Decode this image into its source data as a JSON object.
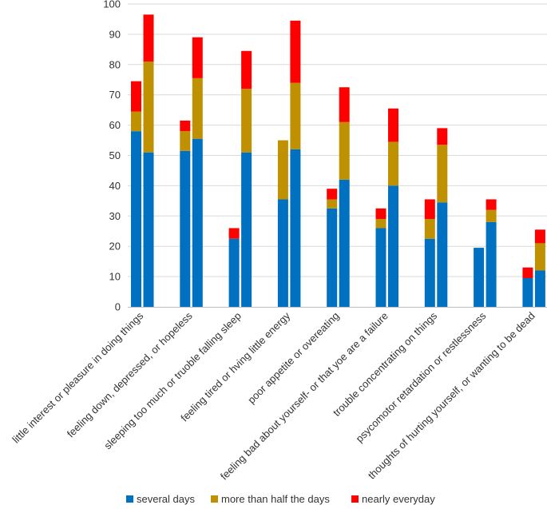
{
  "chart_data": {
    "type": "bar",
    "stacked": true,
    "grid": true,
    "legend_position": "bottom",
    "ylim": [
      0,
      100
    ],
    "yticks": [
      0,
      10,
      20,
      30,
      40,
      50,
      60,
      70,
      80,
      90,
      100
    ],
    "categories": [
      "little interest or pleasure in doing things",
      "feeling down, depressed, or hopeless",
      "sleeping too much or truoble falling sleep",
      "feeling tired or hving little energy",
      "poor appetite or overeating",
      "feeling bad about yourself- or that yoe are a failure",
      "trouble concentrating on things",
      "psycomotor retardation or restlessness",
      "thoughts of hurting yourself, or wanting to be dead"
    ],
    "bars_per_category": 2,
    "series": [
      {
        "name": "several days",
        "color": "#0070C0",
        "values": [
          [
            58,
            51
          ],
          [
            51.5,
            55.5
          ],
          [
            22.5,
            51
          ],
          [
            35.5,
            52
          ],
          [
            32.5,
            42
          ],
          [
            26,
            40
          ],
          [
            22.5,
            34.5
          ],
          [
            19.5,
            28
          ],
          [
            9.5,
            12
          ]
        ]
      },
      {
        "name": "more than half the days",
        "color": "#BF9000",
        "values": [
          [
            6.5,
            30
          ],
          [
            6.5,
            20
          ],
          [
            0,
            21
          ],
          [
            19.5,
            22
          ],
          [
            3,
            19
          ],
          [
            3,
            14.5
          ],
          [
            6.5,
            19
          ],
          [
            0,
            4
          ],
          [
            0,
            9
          ]
        ]
      },
      {
        "name": "nearly everyday",
        "color": "#FF0000",
        "values": [
          [
            10,
            15.5
          ],
          [
            3.5,
            13.5
          ],
          [
            3.5,
            12.5
          ],
          [
            0,
            20.5
          ],
          [
            3.5,
            11.5
          ],
          [
            3.5,
            11
          ],
          [
            6.5,
            5.5
          ],
          [
            0,
            3.5
          ],
          [
            3.5,
            4.5
          ]
        ]
      }
    ]
  }
}
